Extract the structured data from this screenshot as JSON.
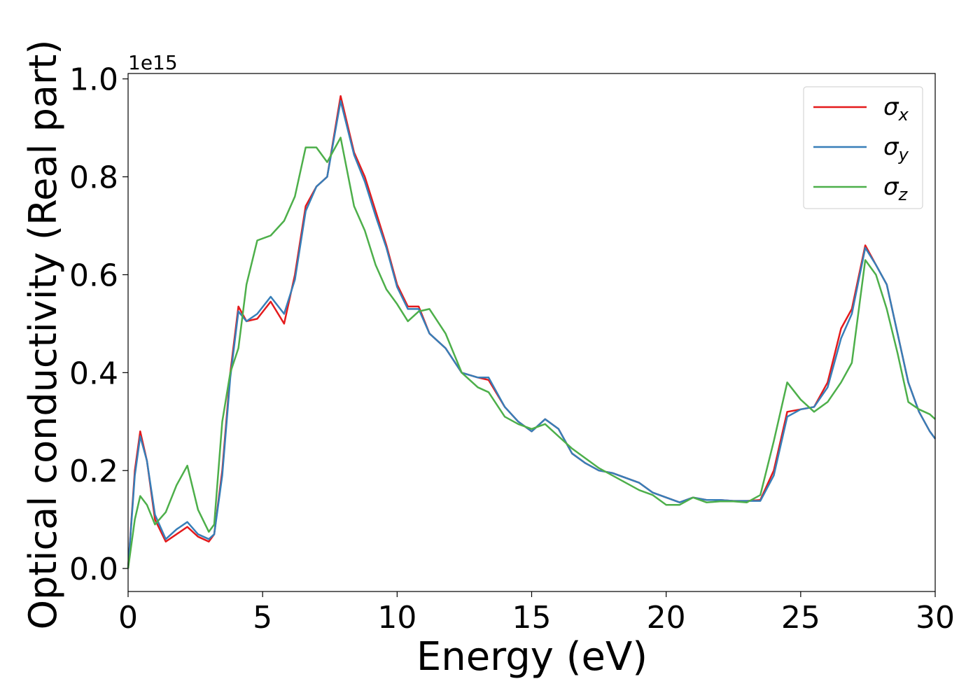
{
  "chart_data": {
    "type": "line",
    "x_label": "Energy (eV)",
    "y_label": "Optical conductivity (Real part)",
    "y_offset_label": "1e15",
    "x": [
      0,
      0.25,
      0.45,
      0.7,
      1.0,
      1.4,
      1.8,
      2.2,
      2.6,
      3.0,
      3.2,
      3.5,
      3.8,
      4.1,
      4.4,
      4.8,
      5.3,
      5.8,
      6.2,
      6.6,
      7.0,
      7.4,
      7.9,
      8.4,
      8.8,
      9.2,
      9.6,
      10.0,
      10.4,
      10.8,
      11.2,
      11.8,
      12.4,
      13.0,
      13.4,
      14.0,
      14.5,
      15.0,
      15.5,
      16.0,
      16.5,
      17.0,
      17.5,
      18.0,
      18.5,
      19.0,
      19.5,
      20.0,
      20.5,
      21.0,
      21.5,
      22.0,
      22.5,
      23.0,
      23.5,
      24.0,
      24.5,
      25.0,
      25.5,
      26.0,
      26.5,
      26.9,
      27.4,
      27.8,
      28.2,
      28.6,
      29.0,
      29.4,
      29.8,
      30
    ],
    "series": [
      {
        "name": "σx",
        "color": "#e41a1c",
        "values": [
          0.0,
          0.2,
          0.28,
          0.22,
          0.1,
          0.055,
          0.07,
          0.085,
          0.065,
          0.055,
          0.07,
          0.2,
          0.4,
          0.535,
          0.505,
          0.51,
          0.545,
          0.5,
          0.6,
          0.74,
          0.78,
          0.8,
          0.965,
          0.85,
          0.8,
          0.73,
          0.66,
          0.58,
          0.535,
          0.535,
          0.48,
          0.45,
          0.4,
          0.39,
          0.385,
          0.33,
          0.3,
          0.28,
          0.305,
          0.285,
          0.235,
          0.215,
          0.2,
          0.195,
          0.185,
          0.175,
          0.155,
          0.145,
          0.135,
          0.145,
          0.14,
          0.14,
          0.138,
          0.138,
          0.14,
          0.2,
          0.32,
          0.325,
          0.33,
          0.38,
          0.49,
          0.53,
          0.66,
          0.62,
          0.58,
          0.48,
          0.38,
          0.32,
          0.28,
          0.265
        ]
      },
      {
        "name": "σy",
        "color": "#377eb8",
        "values": [
          0.0,
          0.19,
          0.27,
          0.22,
          0.11,
          0.06,
          0.08,
          0.095,
          0.07,
          0.06,
          0.07,
          0.19,
          0.39,
          0.525,
          0.505,
          0.52,
          0.555,
          0.52,
          0.59,
          0.73,
          0.78,
          0.8,
          0.955,
          0.845,
          0.79,
          0.72,
          0.655,
          0.575,
          0.53,
          0.53,
          0.48,
          0.45,
          0.4,
          0.39,
          0.39,
          0.33,
          0.3,
          0.28,
          0.305,
          0.285,
          0.235,
          0.215,
          0.2,
          0.195,
          0.185,
          0.175,
          0.155,
          0.145,
          0.135,
          0.145,
          0.14,
          0.14,
          0.138,
          0.138,
          0.138,
          0.19,
          0.31,
          0.325,
          0.33,
          0.37,
          0.47,
          0.52,
          0.655,
          0.62,
          0.58,
          0.48,
          0.38,
          0.32,
          0.28,
          0.265
        ]
      },
      {
        "name": "σz",
        "color": "#4daf4a",
        "values": [
          0.0,
          0.1,
          0.148,
          0.13,
          0.09,
          0.115,
          0.17,
          0.21,
          0.12,
          0.075,
          0.09,
          0.3,
          0.4,
          0.45,
          0.58,
          0.67,
          0.68,
          0.71,
          0.76,
          0.86,
          0.86,
          0.83,
          0.88,
          0.74,
          0.69,
          0.62,
          0.57,
          0.54,
          0.505,
          0.525,
          0.53,
          0.48,
          0.4,
          0.37,
          0.36,
          0.31,
          0.295,
          0.285,
          0.295,
          0.27,
          0.245,
          0.225,
          0.205,
          0.19,
          0.175,
          0.16,
          0.15,
          0.13,
          0.13,
          0.145,
          0.135,
          0.137,
          0.137,
          0.135,
          0.15,
          0.26,
          0.38,
          0.345,
          0.32,
          0.34,
          0.38,
          0.42,
          0.63,
          0.6,
          0.53,
          0.44,
          0.34,
          0.325,
          0.315,
          0.305
        ]
      }
    ],
    "xlim": [
      0,
      30
    ],
    "xticks": [
      0,
      5,
      10,
      15,
      20,
      25,
      30
    ],
    "ylim": [
      -0.047,
      1.011
    ],
    "yticks": [
      {
        "value": 0,
        "label": "0.0"
      },
      0.2,
      0.4,
      0.6,
      0.8,
      {
        "value": 1,
        "label": "1.0"
      }
    ],
    "grid": false,
    "legend": "upper right"
  }
}
